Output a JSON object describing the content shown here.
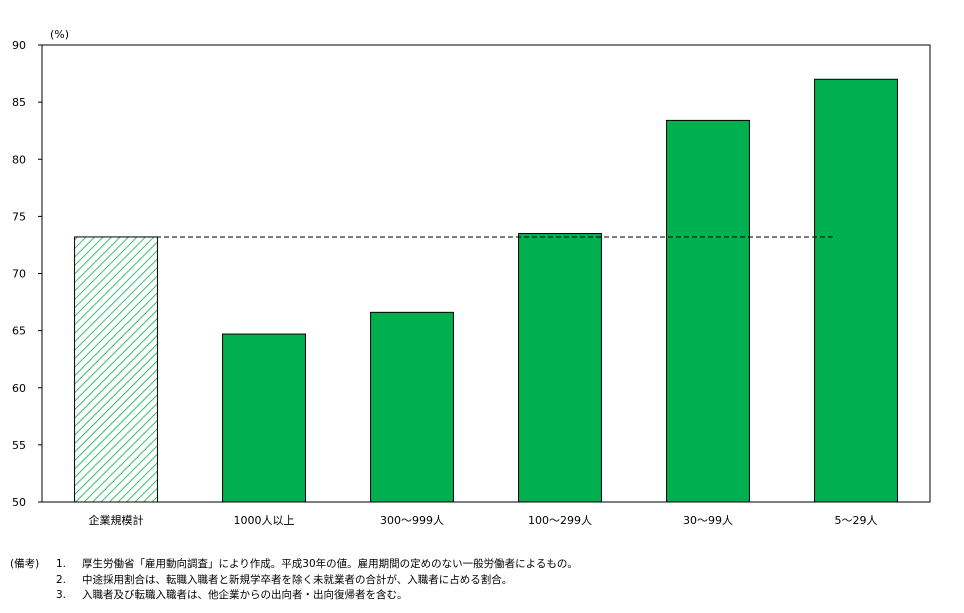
{
  "chart_data": {
    "type": "bar",
    "unit_label": "(%)",
    "categories": [
      "企業規模計",
      "1000人以上",
      "300〜999人",
      "100〜299人",
      "30〜99人",
      "5〜29人"
    ],
    "values": [
      73.2,
      64.7,
      66.6,
      73.5,
      83.4,
      87.0
    ],
    "ylim": [
      50,
      90
    ],
    "yticks": [
      50,
      55,
      60,
      65,
      70,
      75,
      80,
      85,
      90
    ],
    "reference_line": 73.2,
    "colors": {
      "bar": "#00b050",
      "total_hatch": "#00b050",
      "axis": "#000000"
    },
    "grid": false,
    "legend": "none"
  },
  "notes": {
    "label": "(備考)",
    "items": [
      {
        "num": "1.",
        "text": "厚生労働省「雇用動向調査」により作成。平成30年の値。雇用期間の定めのない一般労働者によるもの。"
      },
      {
        "num": "2.",
        "text": "中途採用割合は、転職入職者と新規学卒者を除く未就業者の合計が、入職者に占める割合。"
      },
      {
        "num": "3.",
        "text": "入職者及び転職入職者は、他企業からの出向者・出向復帰者を含む。"
      }
    ]
  }
}
